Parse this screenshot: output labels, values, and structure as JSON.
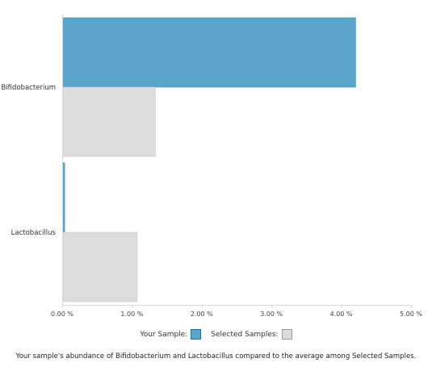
{
  "chart_data": {
    "type": "bar",
    "orientation": "horizontal",
    "categories": [
      "Bifidobacterium",
      "Lactobacillus"
    ],
    "series": [
      {
        "name": "Your Sample:",
        "values": [
          4.2,
          0.03
        ],
        "color": "#5ba5cc",
        "stroke": "#3f8bb5"
      },
      {
        "name": "Selected Samples:",
        "values": [
          1.33,
          1.07
        ],
        "color": "#dcdcdc",
        "stroke": "#c8c8c8"
      }
    ],
    "xlim": [
      0,
      5
    ],
    "xticks": [
      0,
      1,
      2,
      3,
      4,
      5
    ],
    "xtick_labels": [
      "0.00 %",
      "1.00 %",
      "2.00 %",
      "3.00 %",
      "4.00 %",
      "5.00 %"
    ],
    "grid": false,
    "legend_position": "bottom",
    "caption": "Your sample's abundance of Bifidobacterium and Lactobacillus compared to the average among Selected Samples."
  }
}
